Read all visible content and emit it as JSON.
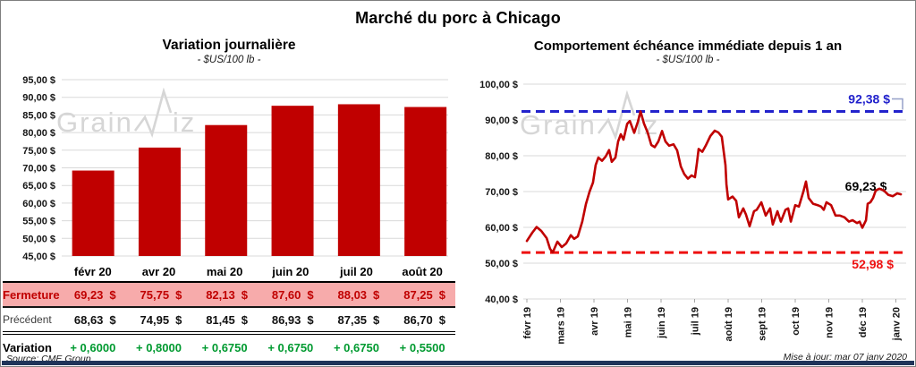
{
  "page": {
    "title": "Marché du porc à Chicago",
    "source": "Source: CME Group",
    "updated": "Mise à jour: mar 07 janv 2020",
    "watermark": {
      "part1": "Grain",
      "part2": "iz"
    }
  },
  "colors": {
    "dark_red": "#c00000",
    "pink_row": "#f7abab",
    "green": "#009a30",
    "blue": "#2222cc",
    "bright_red": "#ee1111",
    "grid": "#d9d9d9",
    "navy_bar": "#1f3459"
  },
  "chart_data": [
    {
      "type": "bar",
      "title": "Variation journalière",
      "subtitle": "- $US/100 lb -",
      "categories": [
        "févr 20",
        "avr 20",
        "mai 20",
        "juin 20",
        "juil 20",
        "août 20"
      ],
      "values": [
        69.23,
        75.75,
        82.13,
        87.6,
        88.03,
        87.25
      ],
      "bar_color": "#c00000",
      "ylim": [
        45,
        95
      ],
      "ytick_values": [
        95,
        90,
        85,
        80,
        75,
        70,
        65,
        60,
        55,
        50,
        45
      ],
      "ytick_labels": [
        "95,00 $",
        "90,00 $",
        "85,00 $",
        "80,00 $",
        "75,00 $",
        "70,00 $",
        "65,00 $",
        "60,00 $",
        "55,00 $",
        "50,00 $",
        "45,00 $"
      ],
      "grid": true
    },
    {
      "type": "line",
      "title": "Comportement échéance immédiate depuis 1 an",
      "subtitle": "- $US/100 lb -",
      "x_ticks": [
        "févr 19",
        "mars 19",
        "avr 19",
        "mai 19",
        "juin 19",
        "juil 19",
        "août 19",
        "sept 19",
        "oct 19",
        "nov 19",
        "déc 19",
        "janv 20"
      ],
      "ylim": [
        40,
        100
      ],
      "ytick_values": [
        100,
        90,
        80,
        70,
        60,
        50,
        40
      ],
      "ytick_labels": [
        "100,00 $",
        "90,00 $",
        "80,00 $",
        "70,00 $",
        "60,00 $",
        "50,00 $",
        "40,00 $"
      ],
      "line_color": "#c00000",
      "grid": true,
      "high_line": {
        "value": 92.38,
        "label": "92,38 $",
        "color": "#2222cc"
      },
      "low_line": {
        "value": 52.98,
        "label": "52,98 $",
        "color": "#ee1111"
      },
      "last_point": {
        "value": 69.23,
        "label": "69,23 $",
        "color": "#000000"
      },
      "points": [
        [
          0,
          56.2
        ],
        [
          0.16,
          58.5
        ],
        [
          0.29,
          60.1
        ],
        [
          0.43,
          59
        ],
        [
          0.59,
          57
        ],
        [
          0.69,
          54
        ],
        [
          0.77,
          53
        ],
        [
          0.91,
          56
        ],
        [
          1.04,
          54.5
        ],
        [
          1.17,
          55.5
        ],
        [
          1.31,
          57.8
        ],
        [
          1.41,
          56.8
        ],
        [
          1.52,
          57.5
        ],
        [
          1.65,
          61.6
        ],
        [
          1.76,
          66.5
        ],
        [
          1.87,
          70
        ],
        [
          1.97,
          72.5
        ],
        [
          2.05,
          77.4
        ],
        [
          2.13,
          79.5
        ],
        [
          2.24,
          78.6
        ],
        [
          2.35,
          79.8
        ],
        [
          2.45,
          81.6
        ],
        [
          2.53,
          78.3
        ],
        [
          2.64,
          79.5
        ],
        [
          2.72,
          84
        ],
        [
          2.8,
          86
        ],
        [
          2.88,
          84.5
        ],
        [
          2.99,
          88.9
        ],
        [
          3.07,
          89.7
        ],
        [
          3.2,
          86.4
        ],
        [
          3.31,
          89.5
        ],
        [
          3.39,
          92.38
        ],
        [
          3.49,
          89
        ],
        [
          3.6,
          86.5
        ],
        [
          3.71,
          83
        ],
        [
          3.81,
          82.4
        ],
        [
          3.92,
          84
        ],
        [
          4.03,
          86.9
        ],
        [
          4.13,
          84
        ],
        [
          4.24,
          82.8
        ],
        [
          4.37,
          83.2
        ],
        [
          4.48,
          81.5
        ],
        [
          4.59,
          77
        ],
        [
          4.69,
          74.9
        ],
        [
          4.8,
          73.6
        ],
        [
          4.91,
          74.5
        ],
        [
          5.01,
          74
        ],
        [
          5.07,
          78
        ],
        [
          5.12,
          81.9
        ],
        [
          5.23,
          81.1
        ],
        [
          5.33,
          82.8
        ],
        [
          5.47,
          85.5
        ],
        [
          5.6,
          87
        ],
        [
          5.71,
          86.5
        ],
        [
          5.81,
          85.3
        ],
        [
          5.92,
          77.4
        ],
        [
          5.95,
          72
        ],
        [
          6,
          67.8
        ],
        [
          6.13,
          68.6
        ],
        [
          6.24,
          67.4
        ],
        [
          6.32,
          62.8
        ],
        [
          6.45,
          65.3
        ],
        [
          6.53,
          63.6
        ],
        [
          6.64,
          60.3
        ],
        [
          6.77,
          64.5
        ],
        [
          6.85,
          64.9
        ],
        [
          6.99,
          67
        ],
        [
          7.12,
          63.3
        ],
        [
          7.25,
          65.3
        ],
        [
          7.33,
          60.8
        ],
        [
          7.47,
          64.5
        ],
        [
          7.57,
          61.6
        ],
        [
          7.71,
          64.9
        ],
        [
          7.79,
          65.3
        ],
        [
          7.87,
          61.6
        ],
        [
          8,
          66.2
        ],
        [
          8.11,
          65.8
        ],
        [
          8.24,
          69.9
        ],
        [
          8.32,
          72.8
        ],
        [
          8.4,
          68.2
        ],
        [
          8.53,
          66.6
        ],
        [
          8.67,
          66.2
        ],
        [
          8.77,
          65.8
        ],
        [
          8.85,
          64.9
        ],
        [
          8.93,
          67
        ],
        [
          9.07,
          66.2
        ],
        [
          9.2,
          63.3
        ],
        [
          9.33,
          63.3
        ],
        [
          9.47,
          62.8
        ],
        [
          9.6,
          61.6
        ],
        [
          9.71,
          62
        ],
        [
          9.84,
          61.2
        ],
        [
          9.92,
          61.6
        ],
        [
          10,
          59.9
        ],
        [
          10.11,
          62
        ],
        [
          10.16,
          66.6
        ],
        [
          10.24,
          67
        ],
        [
          10.32,
          68.2
        ],
        [
          10.4,
          70.3
        ],
        [
          10.51,
          70.8
        ],
        [
          10.64,
          70.3
        ],
        [
          10.77,
          69.1
        ],
        [
          10.91,
          68.7
        ],
        [
          11.04,
          69.5
        ],
        [
          11.15,
          69.23
        ]
      ]
    }
  ],
  "table": {
    "rows": [
      {
        "id": "fermeture",
        "label": "Fermeture",
        "values": [
          "69,23",
          "75,75",
          "82,13",
          "87,60",
          "88,03",
          "87,25"
        ],
        "suffix": "$"
      },
      {
        "id": "precedent",
        "label": "Précédent",
        "values": [
          "68,63",
          "74,95",
          "81,45",
          "86,93",
          "87,35",
          "86,70"
        ],
        "suffix": "$"
      },
      {
        "id": "variation",
        "label": "Variation",
        "values": [
          "+ 0,6000",
          "+ 0,8000",
          "+ 0,6750",
          "+ 0,6750",
          "+ 0,6750",
          "+ 0,5500"
        ],
        "suffix": ""
      }
    ]
  }
}
